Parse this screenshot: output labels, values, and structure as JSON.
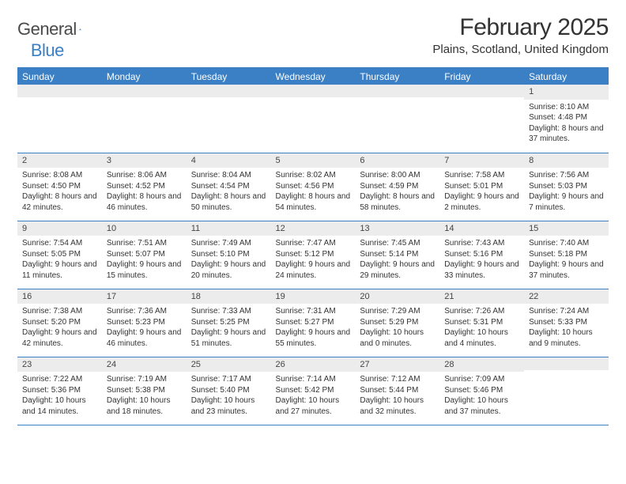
{
  "logo": {
    "text1": "General",
    "text2": "Blue",
    "icon_color": "#3b7fc4"
  },
  "title": "February 2025",
  "location": "Plains, Scotland, United Kingdom",
  "colors": {
    "header_bg": "#3b7fc4",
    "header_fg": "#ffffff",
    "daynum_bg": "#ececec",
    "rule": "#3b7fc4",
    "text": "#333333"
  },
  "typography": {
    "title_fontsize": 30,
    "location_fontsize": 15,
    "dayheader_fontsize": 12,
    "daynum_fontsize": 11,
    "cell_fontsize": 10
  },
  "day_headers": [
    "Sunday",
    "Monday",
    "Tuesday",
    "Wednesday",
    "Thursday",
    "Friday",
    "Saturday"
  ],
  "weeks": [
    [
      {
        "num": "",
        "sunrise": "",
        "sunset": "",
        "daylight": ""
      },
      {
        "num": "",
        "sunrise": "",
        "sunset": "",
        "daylight": ""
      },
      {
        "num": "",
        "sunrise": "",
        "sunset": "",
        "daylight": ""
      },
      {
        "num": "",
        "sunrise": "",
        "sunset": "",
        "daylight": ""
      },
      {
        "num": "",
        "sunrise": "",
        "sunset": "",
        "daylight": ""
      },
      {
        "num": "",
        "sunrise": "",
        "sunset": "",
        "daylight": ""
      },
      {
        "num": "1",
        "sunrise": "Sunrise: 8:10 AM",
        "sunset": "Sunset: 4:48 PM",
        "daylight": "Daylight: 8 hours and 37 minutes."
      }
    ],
    [
      {
        "num": "2",
        "sunrise": "Sunrise: 8:08 AM",
        "sunset": "Sunset: 4:50 PM",
        "daylight": "Daylight: 8 hours and 42 minutes."
      },
      {
        "num": "3",
        "sunrise": "Sunrise: 8:06 AM",
        "sunset": "Sunset: 4:52 PM",
        "daylight": "Daylight: 8 hours and 46 minutes."
      },
      {
        "num": "4",
        "sunrise": "Sunrise: 8:04 AM",
        "sunset": "Sunset: 4:54 PM",
        "daylight": "Daylight: 8 hours and 50 minutes."
      },
      {
        "num": "5",
        "sunrise": "Sunrise: 8:02 AM",
        "sunset": "Sunset: 4:56 PM",
        "daylight": "Daylight: 8 hours and 54 minutes."
      },
      {
        "num": "6",
        "sunrise": "Sunrise: 8:00 AM",
        "sunset": "Sunset: 4:59 PM",
        "daylight": "Daylight: 8 hours and 58 minutes."
      },
      {
        "num": "7",
        "sunrise": "Sunrise: 7:58 AM",
        "sunset": "Sunset: 5:01 PM",
        "daylight": "Daylight: 9 hours and 2 minutes."
      },
      {
        "num": "8",
        "sunrise": "Sunrise: 7:56 AM",
        "sunset": "Sunset: 5:03 PM",
        "daylight": "Daylight: 9 hours and 7 minutes."
      }
    ],
    [
      {
        "num": "9",
        "sunrise": "Sunrise: 7:54 AM",
        "sunset": "Sunset: 5:05 PM",
        "daylight": "Daylight: 9 hours and 11 minutes."
      },
      {
        "num": "10",
        "sunrise": "Sunrise: 7:51 AM",
        "sunset": "Sunset: 5:07 PM",
        "daylight": "Daylight: 9 hours and 15 minutes."
      },
      {
        "num": "11",
        "sunrise": "Sunrise: 7:49 AM",
        "sunset": "Sunset: 5:10 PM",
        "daylight": "Daylight: 9 hours and 20 minutes."
      },
      {
        "num": "12",
        "sunrise": "Sunrise: 7:47 AM",
        "sunset": "Sunset: 5:12 PM",
        "daylight": "Daylight: 9 hours and 24 minutes."
      },
      {
        "num": "13",
        "sunrise": "Sunrise: 7:45 AM",
        "sunset": "Sunset: 5:14 PM",
        "daylight": "Daylight: 9 hours and 29 minutes."
      },
      {
        "num": "14",
        "sunrise": "Sunrise: 7:43 AM",
        "sunset": "Sunset: 5:16 PM",
        "daylight": "Daylight: 9 hours and 33 minutes."
      },
      {
        "num": "15",
        "sunrise": "Sunrise: 7:40 AM",
        "sunset": "Sunset: 5:18 PM",
        "daylight": "Daylight: 9 hours and 37 minutes."
      }
    ],
    [
      {
        "num": "16",
        "sunrise": "Sunrise: 7:38 AM",
        "sunset": "Sunset: 5:20 PM",
        "daylight": "Daylight: 9 hours and 42 minutes."
      },
      {
        "num": "17",
        "sunrise": "Sunrise: 7:36 AM",
        "sunset": "Sunset: 5:23 PM",
        "daylight": "Daylight: 9 hours and 46 minutes."
      },
      {
        "num": "18",
        "sunrise": "Sunrise: 7:33 AM",
        "sunset": "Sunset: 5:25 PM",
        "daylight": "Daylight: 9 hours and 51 minutes."
      },
      {
        "num": "19",
        "sunrise": "Sunrise: 7:31 AM",
        "sunset": "Sunset: 5:27 PM",
        "daylight": "Daylight: 9 hours and 55 minutes."
      },
      {
        "num": "20",
        "sunrise": "Sunrise: 7:29 AM",
        "sunset": "Sunset: 5:29 PM",
        "daylight": "Daylight: 10 hours and 0 minutes."
      },
      {
        "num": "21",
        "sunrise": "Sunrise: 7:26 AM",
        "sunset": "Sunset: 5:31 PM",
        "daylight": "Daylight: 10 hours and 4 minutes."
      },
      {
        "num": "22",
        "sunrise": "Sunrise: 7:24 AM",
        "sunset": "Sunset: 5:33 PM",
        "daylight": "Daylight: 10 hours and 9 minutes."
      }
    ],
    [
      {
        "num": "23",
        "sunrise": "Sunrise: 7:22 AM",
        "sunset": "Sunset: 5:36 PM",
        "daylight": "Daylight: 10 hours and 14 minutes."
      },
      {
        "num": "24",
        "sunrise": "Sunrise: 7:19 AM",
        "sunset": "Sunset: 5:38 PM",
        "daylight": "Daylight: 10 hours and 18 minutes."
      },
      {
        "num": "25",
        "sunrise": "Sunrise: 7:17 AM",
        "sunset": "Sunset: 5:40 PM",
        "daylight": "Daylight: 10 hours and 23 minutes."
      },
      {
        "num": "26",
        "sunrise": "Sunrise: 7:14 AM",
        "sunset": "Sunset: 5:42 PM",
        "daylight": "Daylight: 10 hours and 27 minutes."
      },
      {
        "num": "27",
        "sunrise": "Sunrise: 7:12 AM",
        "sunset": "Sunset: 5:44 PM",
        "daylight": "Daylight: 10 hours and 32 minutes."
      },
      {
        "num": "28",
        "sunrise": "Sunrise: 7:09 AM",
        "sunset": "Sunset: 5:46 PM",
        "daylight": "Daylight: 10 hours and 37 minutes."
      },
      {
        "num": "",
        "sunrise": "",
        "sunset": "",
        "daylight": ""
      }
    ]
  ]
}
